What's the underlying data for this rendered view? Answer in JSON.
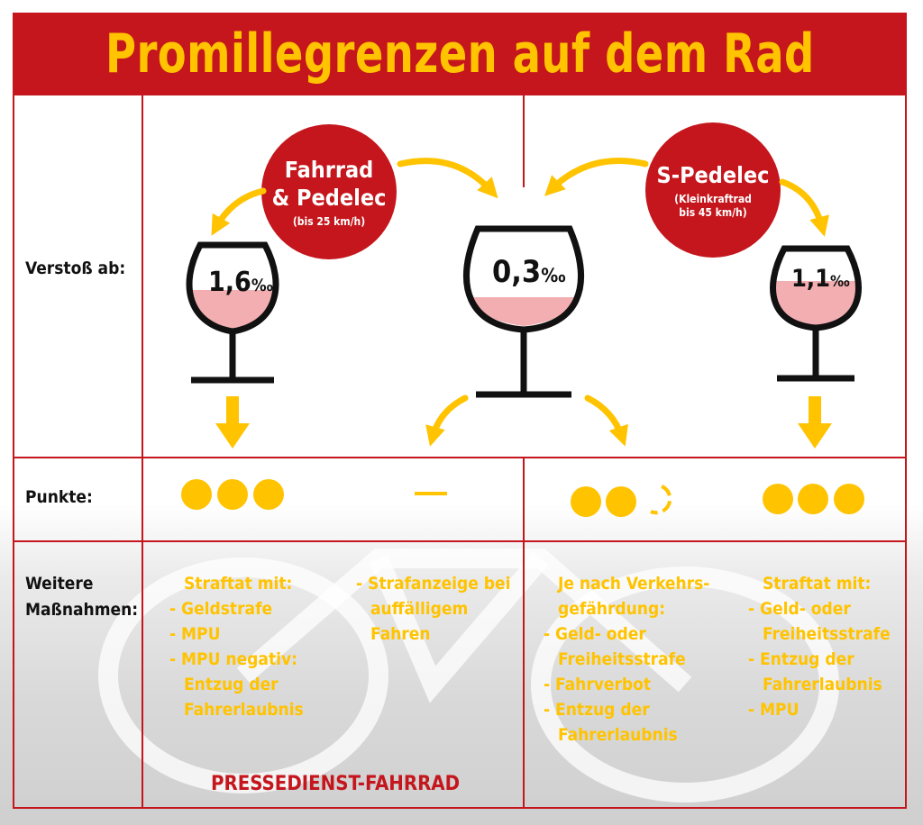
{
  "title": "Promillegrenzen auf dem Rad",
  "row_labels": {
    "verstoss": "Verstoß ab:",
    "punkte": "Punkte:",
    "massnahmen_line1": "Weitere",
    "massnahmen_line2": "Maßnahmen:"
  },
  "categories": {
    "fahrrad": {
      "line1": "Fahrrad",
      "line2": "& Pedelec",
      "note": "(bis 25 km/h)"
    },
    "spedelec": {
      "line1": "S-Pedelec",
      "note1": "(Kleinkraftrad",
      "note2": "bis 45 km/h)"
    }
  },
  "glasses": {
    "left": {
      "value": "1,6",
      "unit": "‰",
      "fill_level": 0.55
    },
    "center": {
      "value": "0,3",
      "unit": "‰",
      "fill_level": 0.2
    },
    "right": {
      "value": "1,1",
      "unit": "‰",
      "fill_level": 0.45
    }
  },
  "punkte": {
    "fahrrad_16": 3,
    "fahrrad_03": "—",
    "spedelec_03": "2–3",
    "spedelec_11": 3
  },
  "measures": {
    "col1": [
      "Straftat mit:",
      "- Geldstrafe",
      "- MPU",
      "- MPU negativ:",
      "Entzug der",
      "Fahrerlaubnis"
    ],
    "col2": [
      "- Strafanzeige bei",
      "auffälligem",
      "Fahren"
    ],
    "col3": [
      "Je nach Verkehrs-",
      "gefährdung:",
      "- Geld- oder",
      "Freiheitsstrafe",
      "- Fahrverbot",
      "- Entzug der",
      "Fahrerlaubnis"
    ],
    "col4": [
      "Straftat mit:",
      "- Geld- oder",
      "Freiheitsstrafe",
      "- Entzug der",
      "Fahrerlaubnis",
      "- MPU"
    ]
  },
  "footer": "PRESSEDIENST-FAHRRAD",
  "colors": {
    "red": "#c4161c",
    "yellow": "#ffc300",
    "wine": "#f2aeb0",
    "black": "#111111"
  }
}
